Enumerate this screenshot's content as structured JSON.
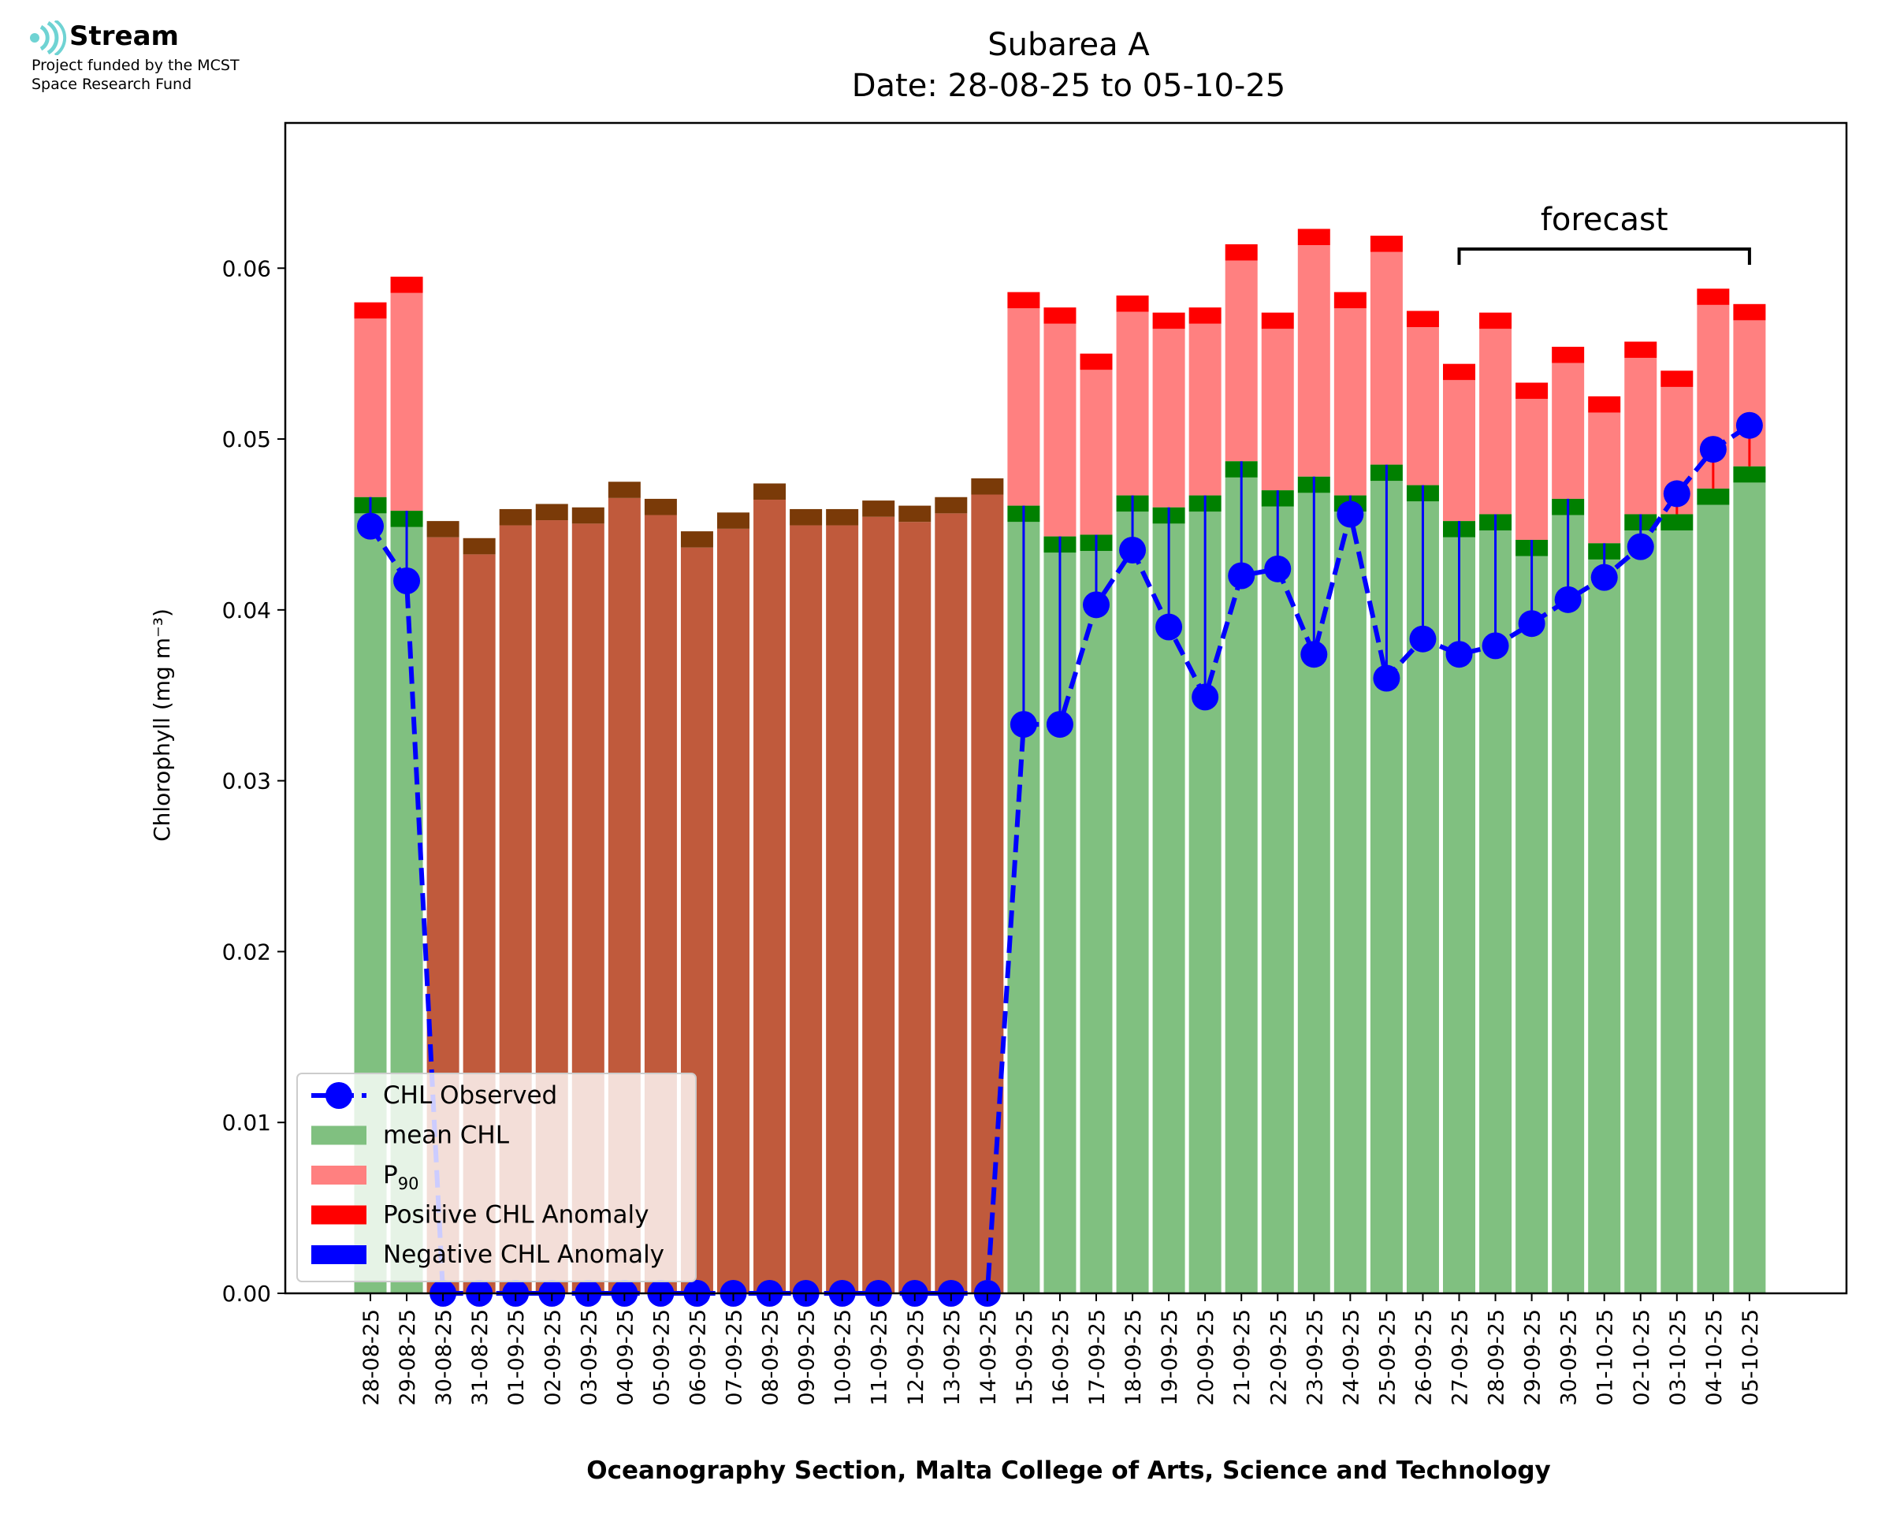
{
  "logo": {
    "name": "Stream",
    "line1": "Project funded by the MCST",
    "line2": "Space Research Fund"
  },
  "colors": {
    "mean": "#80c080",
    "p90": "#ff8080",
    "pos_anom": "#ff0000",
    "neg_anom": "#0000ff",
    "mean_cap": "#008000",
    "missing": "#c05a3c",
    "missing_cap": "#7a3a08",
    "observed": "#0000ff"
  },
  "chart_data": {
    "type": "bar",
    "title": "Subarea A",
    "subtitle": "Date: 28-08-25 to 05-10-25",
    "xlabel": "Oceanography Section, Malta College of Arts, Science and Technology",
    "ylabel": "Chlorophyll (mg m⁻³)",
    "ylim": [
      0,
      0.0685
    ],
    "yticks": [
      "0.00",
      "0.01",
      "0.02",
      "0.03",
      "0.04",
      "0.05",
      "0.06"
    ],
    "grid": false,
    "legend_position": "lower left",
    "legend": [
      {
        "label": "CHL Observed",
        "kind": "line-marker"
      },
      {
        "label": "mean CHL",
        "kind": "patch",
        "color_key": "mean"
      },
      {
        "label": "P",
        "sub": "90",
        "kind": "patch",
        "color_key": "p90"
      },
      {
        "label": "Positive CHL Anomaly",
        "kind": "patch",
        "color_key": "pos_anom"
      },
      {
        "label": "Negative CHL Anomaly",
        "kind": "patch",
        "color_key": "neg_anom"
      }
    ],
    "annotation": {
      "text": "forecast",
      "from": "27-09-25",
      "to": "05-10-25"
    },
    "categories": [
      "28-08-25",
      "29-08-25",
      "30-08-25",
      "31-08-25",
      "01-09-25",
      "02-09-25",
      "03-09-25",
      "04-09-25",
      "05-09-25",
      "06-09-25",
      "07-09-25",
      "08-09-25",
      "09-09-25",
      "10-09-25",
      "11-09-25",
      "12-09-25",
      "13-09-25",
      "14-09-25",
      "15-09-25",
      "16-09-25",
      "17-09-25",
      "18-09-25",
      "19-09-25",
      "20-09-25",
      "21-09-25",
      "22-09-25",
      "23-09-25",
      "24-09-25",
      "25-09-25",
      "26-09-25",
      "27-09-25",
      "28-09-25",
      "29-09-25",
      "30-09-25",
      "01-10-25",
      "02-10-25",
      "03-10-25",
      "04-10-25",
      "05-10-25"
    ],
    "series": [
      {
        "name": "mean CHL",
        "values": [
          0.0466,
          0.0458,
          0.0452,
          0.0442,
          0.0459,
          0.0462,
          0.046,
          0.0475,
          0.0465,
          0.0446,
          0.0457,
          0.0474,
          0.0459,
          0.0459,
          0.0464,
          0.0461,
          0.0466,
          0.0477,
          0.0461,
          0.0443,
          0.0444,
          0.0467,
          0.046,
          0.0467,
          0.0487,
          0.047,
          0.0478,
          0.0467,
          0.0485,
          0.0473,
          0.0452,
          0.0456,
          0.0441,
          0.0465,
          0.0439,
          0.0456,
          0.0456,
          0.0471,
          0.0484
        ]
      },
      {
        "name": "P90",
        "values": [
          0.058,
          0.0595,
          null,
          null,
          null,
          null,
          null,
          null,
          null,
          null,
          null,
          null,
          null,
          null,
          null,
          null,
          null,
          null,
          0.0586,
          0.0577,
          0.055,
          0.0584,
          0.0574,
          0.0577,
          0.0614,
          0.0574,
          0.0623,
          0.0586,
          0.0619,
          0.0575,
          0.0544,
          0.0574,
          0.0533,
          0.0554,
          0.0525,
          0.0557,
          0.054,
          0.0588,
          0.0579
        ]
      },
      {
        "name": "CHL Observed",
        "values": [
          0.0449,
          0.0417,
          0.0,
          0.0,
          0.0,
          0.0,
          0.0,
          0.0,
          0.0,
          0.0,
          0.0,
          0.0,
          0.0,
          0.0,
          0.0,
          0.0,
          0.0,
          0.0,
          0.0333,
          0.0333,
          0.0403,
          0.0435,
          0.039,
          0.0349,
          0.042,
          0.0424,
          0.0374,
          0.0456,
          0.036,
          0.0383,
          0.0374,
          0.0379,
          0.0392,
          0.0406,
          0.0419,
          0.0437,
          0.0468,
          0.0494,
          0.0508
        ]
      }
    ],
    "missing_observation_dates": [
      "30-08-25",
      "31-08-25",
      "01-09-25",
      "02-09-25",
      "03-09-25",
      "04-09-25",
      "05-09-25",
      "06-09-25",
      "07-09-25",
      "08-09-25",
      "09-09-25",
      "10-09-25",
      "11-09-25",
      "12-09-25",
      "13-09-25",
      "14-09-25"
    ]
  }
}
